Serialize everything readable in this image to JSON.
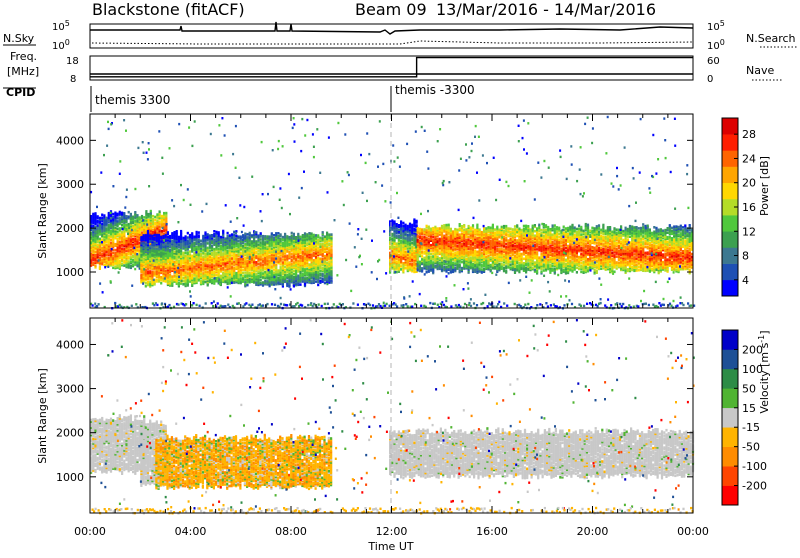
{
  "header": {
    "radar_title": "Blackstone (fitACF)",
    "beam_label": "Beam 09",
    "date_range": "13/Mar/2016 - 14/Mar/2016"
  },
  "aux_panels": {
    "sky_label": "N.Sky",
    "search_label": "N.Search",
    "freq_label_top": "Freq.",
    "freq_label_unit": "[MHz]",
    "nave_label": "Nave",
    "cpid_label": "CPID",
    "noise_ticks": [
      "10^5",
      "10^0"
    ],
    "noise_right_ticks": [
      "10^5",
      "10^0"
    ],
    "freq_ticks": [
      "18",
      "8"
    ],
    "nave_ticks": [
      "60",
      "0"
    ],
    "cpid_entries": [
      {
        "label": "themis 3300",
        "hour": 0
      },
      {
        "label": "themis -3300",
        "hour": 12
      }
    ],
    "freq_steps": [
      {
        "hour": 0,
        "mhz": 10.5
      },
      {
        "hour": 24,
        "mhz": 10.5
      }
    ],
    "nave_steps": [
      {
        "hour": 0,
        "nave": 8
      },
      {
        "hour": 13,
        "nave": 8
      },
      {
        "hour": 13,
        "nave": 56
      },
      {
        "hour": 24,
        "nave": 56
      }
    ]
  },
  "chart_data": [
    {
      "type": "heatmap",
      "name": "power",
      "xlabel": "",
      "ylabel": "Slant Range [km]",
      "xlim_hours": [
        0,
        24
      ],
      "ylim_km": [
        180,
        4600
      ],
      "y_ticks": [
        1000,
        2000,
        3000,
        4000
      ],
      "colorbar_label": "Power [dB]",
      "colorbar_ticks": [
        "28",
        "24",
        "20",
        "16",
        "12",
        "8",
        "4"
      ],
      "colors": [
        "#0000ff",
        "#1e50b4",
        "#3c7890",
        "#3ca050",
        "#50c83c",
        "#b4dc28",
        "#ffd700",
        "#ffa500",
        "#ff6400",
        "#ff1e00",
        "#dc0000"
      ],
      "bands": [
        {
          "t0": 0.0,
          "t1": 3.0,
          "r0": 1100,
          "r1": 2300,
          "peak_start": 1250,
          "peak_end": 1950,
          "level": 9
        },
        {
          "t0": 2.0,
          "t1": 9.6,
          "r0": 700,
          "r1": 1850,
          "peak_start": 950,
          "peak_end": 1400,
          "level": 8
        },
        {
          "t0": 11.9,
          "t1": 13.0,
          "r0": 1000,
          "r1": 2100,
          "peak_start": 1350,
          "peak_end": 1200,
          "level": 8
        },
        {
          "t0": 13.0,
          "t1": 24.0,
          "r0": 1000,
          "r1": 2000,
          "peak_start": 1700,
          "peak_end": 1300,
          "level": 9
        }
      ]
    },
    {
      "type": "heatmap",
      "name": "velocity",
      "xlabel": "Time UT",
      "ylabel": "Slant Range [km]",
      "xlim_hours": [
        0,
        24
      ],
      "ylim_km": [
        180,
        4600
      ],
      "y_ticks": [
        1000,
        2000,
        3000,
        4000
      ],
      "x_ticks": [
        "00:00",
        "04:00",
        "08:00",
        "12:00",
        "16:00",
        "20:00",
        "00:00"
      ],
      "colorbar_label": "Velocity [m s",
      "colorbar_label_sup": "-1",
      "colorbar_label_end": "]",
      "colorbar_ticks": [
        "200",
        "100",
        "50",
        "15",
        "-15",
        "-50",
        "-100",
        "-200"
      ],
      "colors": [
        "#ff0000",
        "#ff4500",
        "#ff8c00",
        "#ffb400",
        "#c8c8c8",
        "#50b432",
        "#2d8c46",
        "#1e5096",
        "#0000c8"
      ],
      "bands": [
        {
          "t0": 0.0,
          "t1": 2.2,
          "r0": 1100,
          "r1": 2300,
          "class": "ground"
        },
        {
          "t0": 2.0,
          "t1": 3.0,
          "r0": 800,
          "r1": 2200,
          "class": "ground"
        },
        {
          "t0": 2.6,
          "t1": 9.6,
          "r0": 750,
          "r1": 1850,
          "class": "negative"
        },
        {
          "t0": 11.9,
          "t1": 24.0,
          "r0": 1000,
          "r1": 2000,
          "class": "ground"
        }
      ]
    }
  ]
}
